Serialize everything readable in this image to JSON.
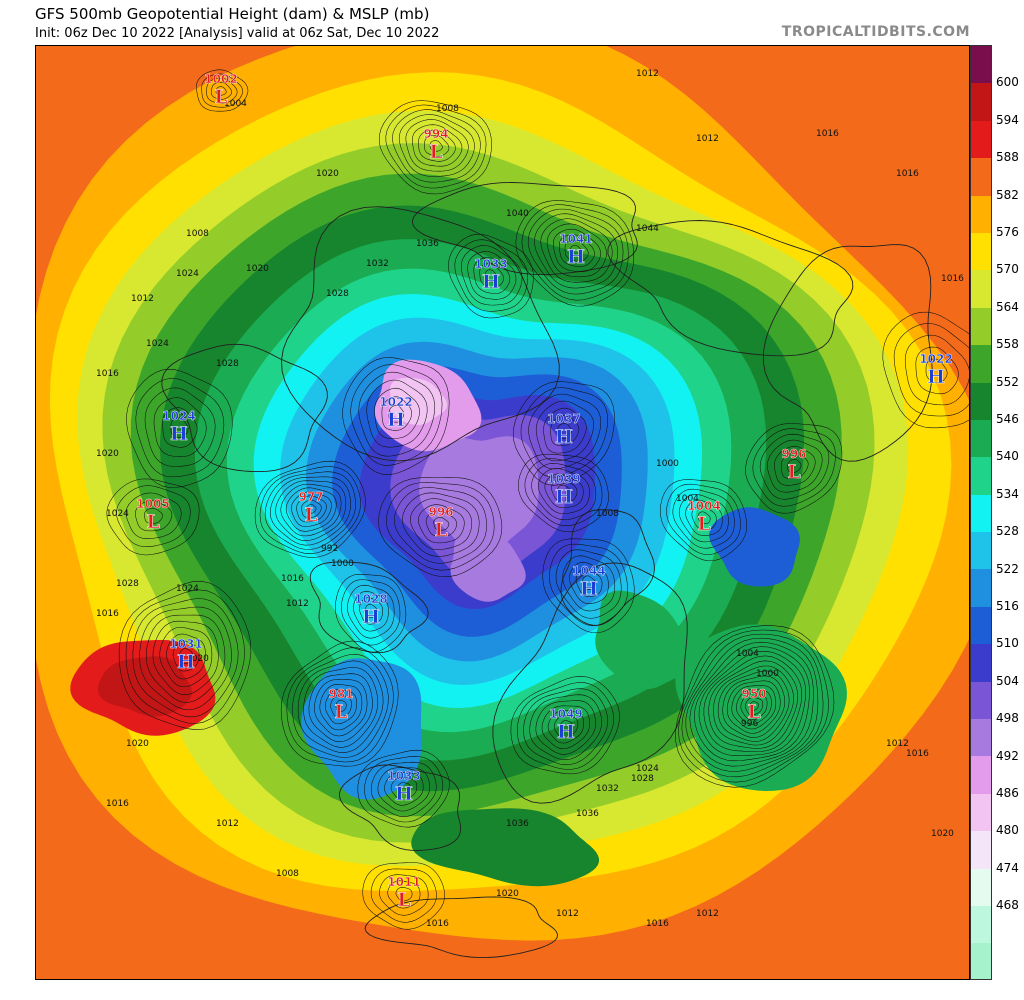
{
  "header": {
    "title": "GFS 500mb Geopotential Height (dam) & MSLP (mb)",
    "subtitle": "Init: 06z Dec 10 2022   [Analysis]   valid at 06z Sat, Dec 10 2022",
    "brand": "TROPICALTIDBITS.COM"
  },
  "colorbar": {
    "levels": [
      {
        "label": "600",
        "color": "#c21616"
      },
      {
        "label": "594",
        "color": "#e31b1b"
      },
      {
        "label": "588",
        "color": "#f36a1a"
      },
      {
        "label": "582",
        "color": "#ffb000"
      },
      {
        "label": "576",
        "color": "#ffe000"
      },
      {
        "label": "570",
        "color": "#d8e830"
      },
      {
        "label": "564",
        "color": "#94cc29"
      },
      {
        "label": "558",
        "color": "#3da62a"
      },
      {
        "label": "552",
        "color": "#17852e"
      },
      {
        "label": "546",
        "color": "#1bab52"
      },
      {
        "label": "540",
        "color": "#1fd48a"
      },
      {
        "label": "534",
        "color": "#13f2f2"
      },
      {
        "label": "528",
        "color": "#1fc2e8"
      },
      {
        "label": "522",
        "color": "#1f8fe0"
      },
      {
        "label": "516",
        "color": "#1d5ed6"
      },
      {
        "label": "510",
        "color": "#3c3ccc"
      },
      {
        "label": "504",
        "color": "#7a55d6"
      },
      {
        "label": "498",
        "color": "#a77ae0"
      },
      {
        "label": "492",
        "color": "#e39bec"
      },
      {
        "label": "486",
        "color": "#f2c4f2"
      },
      {
        "label": "480",
        "color": "#f4e6f8"
      },
      {
        "label": "474",
        "color": "#e6fbf0"
      },
      {
        "label": "468",
        "color": "#bdf7de"
      }
    ],
    "bottom_color": "#a6f2cc",
    "top_color": "#7a0e4d"
  },
  "pressure_systems": [
    {
      "type": "L",
      "value": "1002",
      "color": "#e31b1b"
    },
    {
      "type": "L",
      "value": "994",
      "color": "#e31b1b"
    },
    {
      "type": "H",
      "value": "1041",
      "color": "#1b3fd6"
    },
    {
      "type": "H",
      "value": "1033",
      "color": "#1b3fd6"
    },
    {
      "type": "H",
      "value": "1022",
      "color": "#1b3fd6"
    },
    {
      "type": "H",
      "value": "1024",
      "color": "#1b3fd6"
    },
    {
      "type": "H",
      "value": "1022",
      "color": "#1b3fd6"
    },
    {
      "type": "H",
      "value": "1037",
      "color": "#1b3fd6"
    },
    {
      "type": "L",
      "value": "996",
      "color": "#e31b1b"
    },
    {
      "type": "L",
      "value": "977",
      "color": "#e31b1b"
    },
    {
      "type": "L",
      "value": "1005",
      "color": "#e31b1b"
    },
    {
      "type": "L",
      "value": "996",
      "color": "#e31b1b"
    },
    {
      "type": "H",
      "value": "1039",
      "color": "#1b3fd6"
    },
    {
      "type": "L",
      "value": "1004",
      "color": "#e31b1b"
    },
    {
      "type": "H",
      "value": "1044",
      "color": "#1b3fd6"
    },
    {
      "type": "H",
      "value": "1028",
      "color": "#1b3fd6"
    },
    {
      "type": "H",
      "value": "1031",
      "color": "#1b3fd6"
    },
    {
      "type": "L",
      "value": "981",
      "color": "#e31b1b"
    },
    {
      "type": "L",
      "value": "950",
      "color": "#e31b1b"
    },
    {
      "type": "H",
      "value": "1049",
      "color": "#1b3fd6"
    },
    {
      "type": "H",
      "value": "1033",
      "color": "#1b3fd6"
    },
    {
      "type": "L",
      "value": "1011",
      "color": "#e31b1b"
    }
  ],
  "isobar_labels": [
    "1004",
    "1008",
    "1012",
    "1012",
    "1016",
    "1016",
    "1016",
    "1020",
    "1020",
    "1024",
    "1024",
    "1028",
    "1028",
    "1032",
    "1036",
    "1040",
    "1044",
    "1008",
    "1012",
    "1016",
    "1020",
    "1024",
    "1028",
    "1000",
    "1004",
    "1008",
    "992",
    "1000",
    "1016",
    "1012",
    "1016",
    "1024",
    "1020",
    "1020",
    "1016",
    "1012",
    "1008",
    "1004",
    "1000",
    "996",
    "1024",
    "1028",
    "1032",
    "1036",
    "1036",
    "1016",
    "1020",
    "1012",
    "1016",
    "1012",
    "1012",
    "1016",
    "1020"
  ]
}
